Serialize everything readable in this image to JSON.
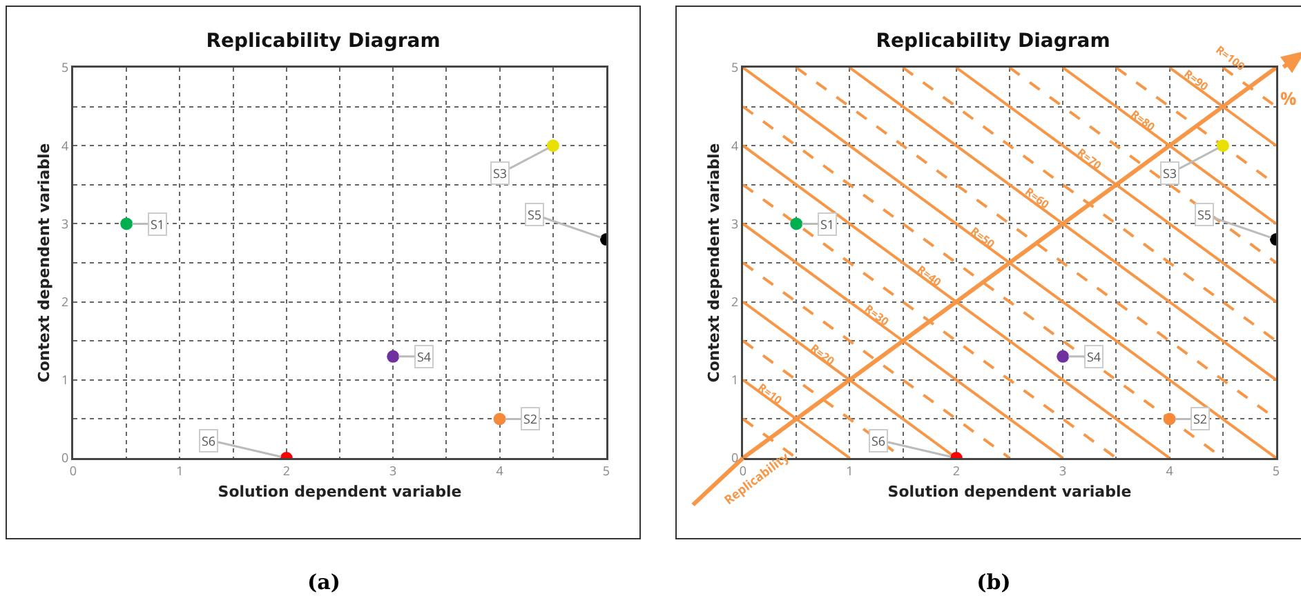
{
  "chart_data": [
    {
      "type": "scatter",
      "title": "Replicability Diagram",
      "xlabel": "Solution dependent variable",
      "ylabel": "Context dependent variable",
      "x": [
        0.5,
        4,
        4.5,
        3,
        5,
        2
      ],
      "values": [
        3,
        0.5,
        4,
        1.3,
        2.8,
        0
      ],
      "colors": [
        "#00b050",
        "#f7893b",
        "#e8e000",
        "#7030a0",
        "#000000",
        "#ff0000"
      ],
      "xlim": [
        0,
        5
      ],
      "ylim": [
        0,
        5
      ],
      "xticks": [
        0,
        {
          "value": 0.5,
          "label": null
        },
        1,
        {
          "value": 1.5,
          "label": null
        },
        2,
        {
          "value": 2.5,
          "label": null
        },
        3,
        {
          "value": 3.5,
          "label": null
        },
        4,
        {
          "value": 4.5,
          "label": null
        },
        5
      ],
      "yticks": [
        0,
        {
          "value": 0.5,
          "label": null
        },
        1,
        {
          "value": 1.5,
          "label": null
        },
        2,
        {
          "value": 2.5,
          "label": null
        },
        3,
        {
          "value": 3.5,
          "label": null
        },
        4,
        {
          "value": 4.5,
          "label": null
        },
        5
      ],
      "grid": true,
      "marker": "circle",
      "annotations": [
        "(a)",
        {
          "text": "S1",
          "x": 0.5,
          "y": 3
        },
        {
          "text": "S2",
          "x": 4,
          "y": 0.5
        },
        {
          "text": "S3",
          "x": 4.5,
          "y": 4
        },
        {
          "text": "S4",
          "x": 3,
          "y": 1.3
        },
        {
          "text": "S5",
          "x": 5,
          "y": 2.8
        },
        {
          "text": "S6",
          "x": 2,
          "y": 0
        }
      ]
    },
    {
      "type": "scatter",
      "title": "Replicability Diagram",
      "xlabel": "Solution dependent variable",
      "ylabel": "Context dependent variable",
      "series": [
        {
          "type": "line",
          "x": [
            0,
            0.5
          ],
          "values": [
            0.5,
            0
          ],
          "color": "#f79646",
          "line_style": "dashed"
        },
        {
          "type": "line",
          "x": [
            0,
            1
          ],
          "values": [
            1,
            0
          ],
          "color": "#f79646",
          "line_style": "solid"
        },
        {
          "type": "line",
          "x": [
            0,
            1.5
          ],
          "values": [
            1.5,
            0
          ],
          "color": "#f79646",
          "line_style": "dashed"
        },
        {
          "type": "line",
          "x": [
            0,
            2
          ],
          "values": [
            2,
            0
          ],
          "color": "#f79646",
          "line_style": "solid"
        },
        {
          "type": "line",
          "x": [
            0,
            2.5
          ],
          "values": [
            2.5,
            0
          ],
          "color": "#f79646",
          "line_style": "dashed"
        },
        {
          "type": "line",
          "x": [
            0,
            3
          ],
          "values": [
            3,
            0
          ],
          "color": "#f79646",
          "line_style": "solid"
        },
        {
          "type": "line",
          "x": [
            0,
            3.5
          ],
          "values": [
            3.5,
            0
          ],
          "color": "#f79646",
          "line_style": "dashed"
        },
        {
          "type": "line",
          "x": [
            0,
            4
          ],
          "values": [
            4,
            0
          ],
          "color": "#f79646",
          "line_style": "solid"
        },
        {
          "type": "line",
          "x": [
            0,
            4.5
          ],
          "values": [
            4.5,
            0
          ],
          "color": "#f79646",
          "line_style": "dashed"
        },
        {
          "type": "line",
          "x": [
            0,
            5
          ],
          "values": [
            5,
            0
          ],
          "color": "#f79646",
          "line_style": "solid"
        },
        {
          "type": "line",
          "x": [
            0.5,
            5
          ],
          "values": [
            5,
            0.5
          ],
          "color": "#f79646",
          "line_style": "dashed"
        },
        {
          "type": "line",
          "x": [
            1,
            5
          ],
          "values": [
            5,
            1
          ],
          "color": "#f79646",
          "line_style": "solid"
        },
        {
          "type": "line",
          "x": [
            1.5,
            5
          ],
          "values": [
            5,
            1.5
          ],
          "color": "#f79646",
          "line_style": "dashed"
        },
        {
          "type": "line",
          "x": [
            2,
            5
          ],
          "values": [
            5,
            2
          ],
          "color": "#f79646",
          "line_style": "solid"
        },
        {
          "type": "line",
          "x": [
            2.5,
            5
          ],
          "values": [
            5,
            2.5
          ],
          "color": "#f79646",
          "line_style": "dashed"
        },
        {
          "type": "line",
          "x": [
            3,
            5
          ],
          "values": [
            5,
            3
          ],
          "color": "#f79646",
          "line_style": "solid"
        },
        {
          "type": "line",
          "x": [
            3.5,
            5
          ],
          "values": [
            5,
            3.5
          ],
          "color": "#f79646",
          "line_style": "dashed"
        },
        {
          "type": "line",
          "x": [
            4,
            5
          ],
          "values": [
            5,
            4
          ],
          "color": "#f79646",
          "line_style": "solid"
        },
        {
          "type": "line",
          "x": [
            4.5,
            5
          ],
          "values": [
            5,
            4.5
          ],
          "color": "#f79646",
          "line_style": "dashed"
        },
        {
          "type": "line",
          "x": [
            0,
            5
          ],
          "values": [
            0,
            5
          ],
          "color": "#f79646",
          "line_style": "solid"
        },
        {
          "type": "scatter",
          "marker": "circle",
          "x": [
            0.5,
            4,
            4.5,
            3,
            5,
            2
          ],
          "values": [
            3,
            0.5,
            4,
            1.3,
            2.8,
            0
          ],
          "colors": [
            "#00b050",
            "#f7893b",
            "#e8e000",
            "#7030a0",
            "#000000",
            "#ff0000"
          ]
        }
      ],
      "xlim": [
        0,
        5
      ],
      "ylim": [
        0,
        5
      ],
      "xticks": [
        0,
        {
          "value": 0.5,
          "label": null
        },
        1,
        {
          "value": 1.5,
          "label": null
        },
        2,
        {
          "value": 2.5,
          "label": null
        },
        3,
        {
          "value": 3.5,
          "label": null
        },
        4,
        {
          "value": 4.5,
          "label": null
        },
        5
      ],
      "yticks": [
        0,
        {
          "value": 0.5,
          "label": null
        },
        1,
        {
          "value": 1.5,
          "label": null
        },
        2,
        {
          "value": 2.5,
          "label": null
        },
        3,
        {
          "value": 3.5,
          "label": null
        },
        4,
        {
          "value": 4.5,
          "label": null
        },
        5
      ],
      "grid": true,
      "annotations": [
        "(b)",
        "Replicability",
        "%",
        {
          "text": "S1",
          "x": 0.5,
          "y": 3
        },
        {
          "text": "S2",
          "x": 4,
          "y": 0.5
        },
        {
          "text": "S3",
          "x": 4.5,
          "y": 4
        },
        {
          "text": "S4",
          "x": 3,
          "y": 1.3
        },
        {
          "text": "S5",
          "x": 5,
          "y": 2.8
        },
        {
          "text": "S6",
          "x": 2,
          "y": 0
        },
        {
          "text": "R=10",
          "x": 0.3,
          "y": 0.7
        },
        {
          "text": "R=20",
          "x": 0.8,
          "y": 1.2
        },
        {
          "text": "R=30",
          "x": 1.3,
          "y": 1.7
        },
        {
          "text": "R=40",
          "x": 1.8,
          "y": 2.2
        },
        {
          "text": "R=50",
          "x": 2.3,
          "y": 2.7
        },
        {
          "text": "R=60",
          "x": 2.8,
          "y": 3.2
        },
        {
          "text": "R=70",
          "x": 3.3,
          "y": 3.7
        },
        {
          "text": "R=80",
          "x": 3.8,
          "y": 4.2
        },
        {
          "text": "R=90",
          "x": 4.3,
          "y": 4.7
        },
        "R=100"
      ]
    }
  ]
}
